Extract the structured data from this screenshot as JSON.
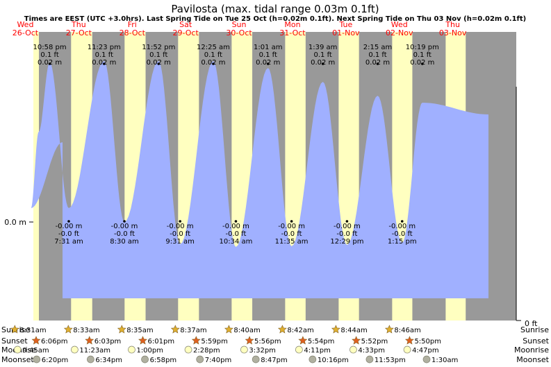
{
  "chart_data": {
    "type": "area",
    "title": "Pavilosta (max. tidal range 0.03m 0.1ft)",
    "subtitle": "Times are EEST (UTC +3.0hrs). Last Spring Tide on Tue 25 Oct (h=0.02m 0.1ft). Next Spring Tide on Thu 03 Nov (h=0.02m 0.1ft)",
    "y_label_left": "0.0 m",
    "y_label_right": "0 ft",
    "days": [
      {
        "dow": "Wed",
        "date": "26-Oct",
        "weekend": false
      },
      {
        "dow": "Thu",
        "date": "27-Oct",
        "weekend": false
      },
      {
        "dow": "Fri",
        "date": "28-Oct",
        "weekend": false
      },
      {
        "dow": "Sat",
        "date": "29-Oct",
        "weekend": true
      },
      {
        "dow": "Sun",
        "date": "30-Oct",
        "weekend": true
      },
      {
        "dow": "Mon",
        "date": "31-Oct",
        "weekend": false
      },
      {
        "dow": "Tue",
        "date": "01-Nov",
        "weekend": false
      },
      {
        "dow": "Wed",
        "date": "02-Nov",
        "weekend": false
      },
      {
        "dow": "Thu",
        "date": "03-Nov",
        "weekend": false
      }
    ],
    "colors": {
      "night": "#999999",
      "day": "#ffffc0",
      "tide": "#a0b0ff",
      "weekend_label": "#ff0000",
      "weekday_label": "#ff0000",
      "sun_star": "#e0b030",
      "sunset_star": "#e06020",
      "moon": "#ffffc0",
      "moonset": "#b0b0a0"
    },
    "high_tides": [
      {
        "time": "10:58 pm",
        "ft": "0.1 ft",
        "m": "0.02 m"
      },
      {
        "time": "11:23 pm",
        "ft": "0.1 ft",
        "m": "0.02 m"
      },
      {
        "time": "11:52 pm",
        "ft": "0.1 ft",
        "m": "0.02 m"
      },
      {
        "time": "12:25 am",
        "ft": "0.1 ft",
        "m": "0.02 m"
      },
      {
        "time": "1:01 am",
        "ft": "0.1 ft",
        "m": "0.02 m"
      },
      {
        "time": "1:39 am",
        "ft": "0.1 ft",
        "m": "0.02 m"
      },
      {
        "time": "2:15 am",
        "ft": "0.1 ft",
        "m": "0.02 m"
      },
      {
        "time": "10:19 pm",
        "ft": "0.1 ft",
        "m": "0.02 m"
      }
    ],
    "low_tides": [
      {
        "time": "7:31 am",
        "m": "-0.00 m",
        "ft": "-0.0 ft"
      },
      {
        "time": "8:30 am",
        "m": "-0.00 m",
        "ft": "-0.0 ft"
      },
      {
        "time": "9:31 am",
        "m": "-0.00 m",
        "ft": "-0.0 ft"
      },
      {
        "time": "10:34 am",
        "m": "-0.00 m",
        "ft": "-0.0 ft"
      },
      {
        "time": "11:35 am",
        "m": "-0.00 m",
        "ft": "-0.0 ft"
      },
      {
        "time": "12:29 pm",
        "m": "-0.00 m",
        "ft": "-0.0 ft"
      },
      {
        "time": "1:15 pm",
        "m": "-0.00 m",
        "ft": "-0.0 ft"
      }
    ],
    "rows": {
      "sunrise_label": "Sunrise",
      "sunset_label": "Sunset",
      "moonrise_label": "Moonrise",
      "moonset_label": "Moonset"
    },
    "sunrise": [
      "8:31am",
      "8:33am",
      "8:35am",
      "8:37am",
      "8:40am",
      "8:42am",
      "8:44am",
      "8:46am"
    ],
    "sunset": [
      "6:06pm",
      "6:03pm",
      "6:01pm",
      "5:59pm",
      "5:56pm",
      "5:54pm",
      "5:52pm",
      "5:50pm"
    ],
    "moonrise": [
      "9:45am",
      "11:23am",
      "1:00pm",
      "2:28pm",
      "3:32pm",
      "4:11pm",
      "4:33pm",
      "4:47pm"
    ],
    "moonset": [
      "6:20pm",
      "6:34pm",
      "6:58pm",
      "7:40pm",
      "8:47pm",
      "10:16pm",
      "11:53pm",
      "1:30am"
    ]
  }
}
